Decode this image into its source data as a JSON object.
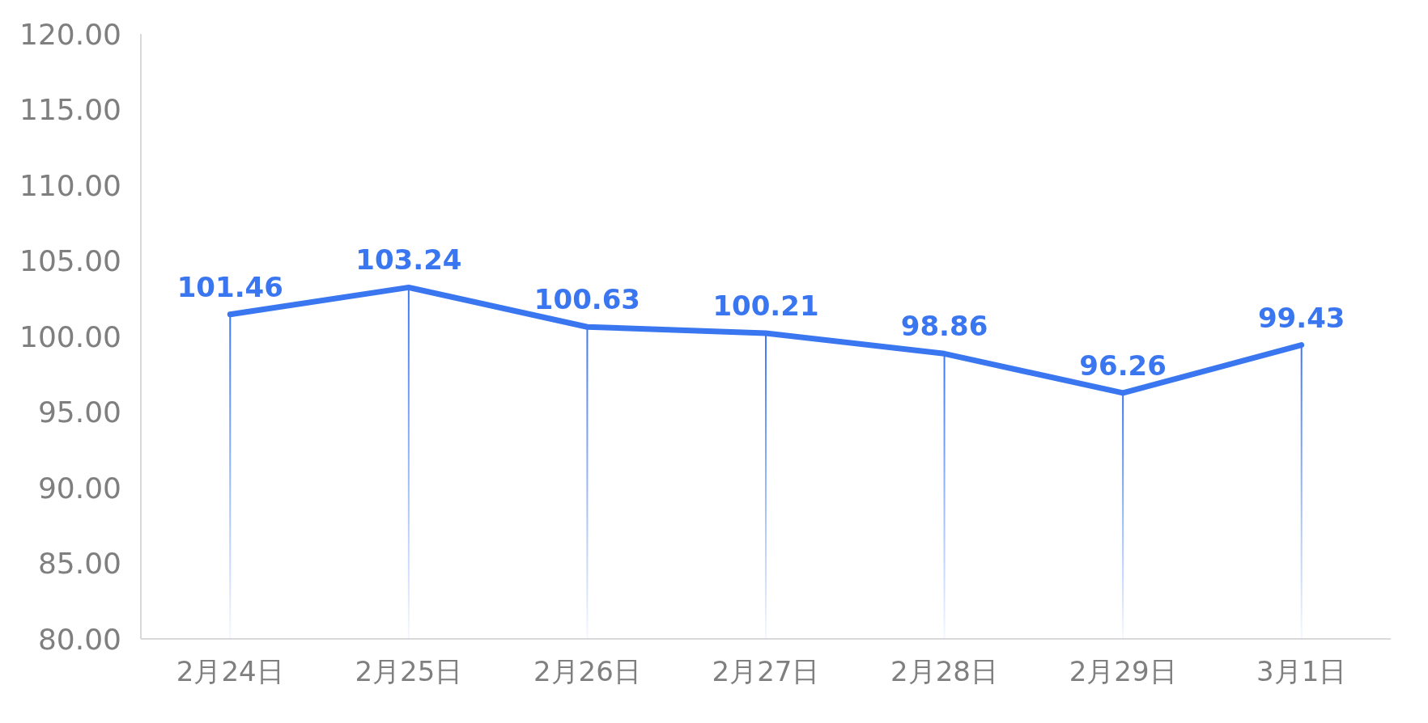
{
  "chart_data": {
    "type": "line",
    "categories": [
      "2月24日",
      "2月25日",
      "2月26日",
      "2月27日",
      "2月28日",
      "2月29日",
      "3月1日"
    ],
    "series": [
      {
        "type": "bar",
        "color": "#3a76f0",
        "values": [
          101.46,
          103.24,
          100.63,
          100.21,
          98.86,
          96.26,
          99.43
        ],
        "value_labels": [
          null,
          null,
          null,
          null,
          null,
          null,
          null
        ]
      },
      {
        "color": "#3a76f0",
        "values": [
          101.46,
          103.24,
          100.63,
          100.21,
          98.86,
          96.26,
          99.43
        ],
        "value_labels": [
          "101.46",
          "103.24",
          "100.63",
          "100.21",
          "98.86",
          "96.26",
          "99.43"
        ]
      }
    ],
    "ylim": [
      80,
      120
    ],
    "yticks": [
      {
        "value": 80,
        "label": "80.00"
      },
      {
        "value": 85,
        "label": "85.00"
      },
      {
        "value": 90,
        "label": "90.00"
      },
      {
        "value": 95,
        "label": "95.00"
      },
      {
        "value": 100,
        "label": "100.00"
      },
      {
        "value": 105,
        "label": "105.00"
      },
      {
        "value": 110,
        "label": "110.00"
      },
      {
        "value": 115,
        "label": "115.00"
      },
      {
        "value": 120,
        "label": "120.00"
      }
    ],
    "grid": false,
    "marker": "none",
    "line_style": "solid"
  }
}
